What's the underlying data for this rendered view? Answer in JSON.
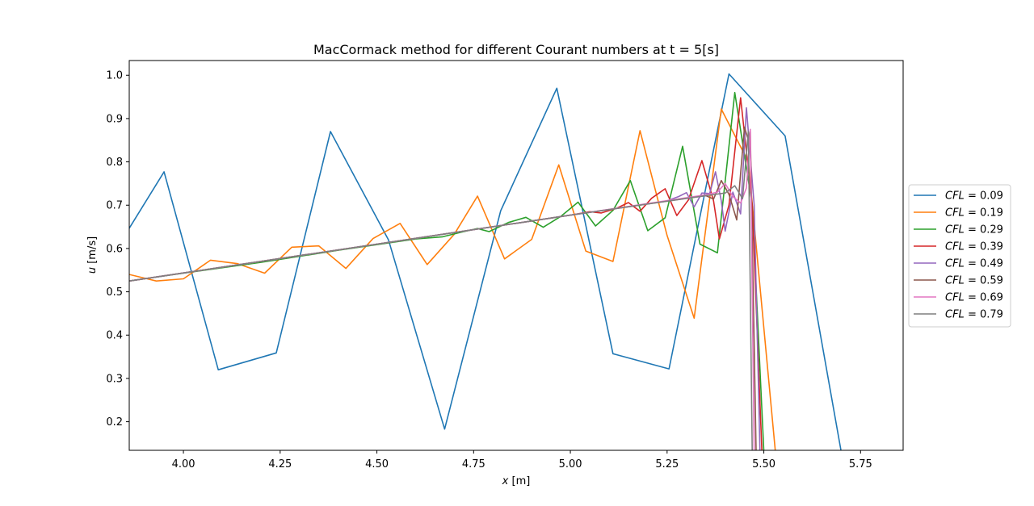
{
  "chart_data": {
    "type": "line",
    "title": "MacCormack method for different Courant numbers at t = 5[s]",
    "xlabel_var": "x",
    "xlabel_unit": " [m]",
    "ylabel_var": "u",
    "ylabel_unit": " [m/s]",
    "xlim": [
      3.86,
      5.86
    ],
    "ylim": [
      0.134,
      1.034
    ],
    "xticks": [
      4.0,
      4.25,
      4.5,
      4.75,
      5.0,
      5.25,
      5.5,
      5.75
    ],
    "xtick_labels": [
      "4.00",
      "4.25",
      "4.50",
      "4.75",
      "5.00",
      "5.25",
      "5.50",
      "5.75"
    ],
    "yticks": [
      0.2,
      0.3,
      0.4,
      0.5,
      0.6,
      0.7,
      0.8,
      0.9,
      1.0
    ],
    "ytick_labels": [
      "0.2",
      "0.3",
      "0.4",
      "0.5",
      "0.6",
      "0.7",
      "0.8",
      "0.9",
      "1.0"
    ],
    "grid": false,
    "legend_position": "right-outside",
    "legend_label_var": "CFL",
    "series": [
      {
        "name": "0.09",
        "color": "#1f77b4",
        "x": [
          3.8,
          3.95,
          4.09,
          4.24,
          4.38,
          4.53,
          4.675,
          4.82,
          4.965,
          5.11,
          5.255,
          5.41,
          5.555,
          5.7
        ],
        "y": [
          0.56,
          0.777,
          0.32,
          0.359,
          0.87,
          0.62,
          0.183,
          0.687,
          0.97,
          0.357,
          0.322,
          1.003,
          0.86,
          0.13
        ]
      },
      {
        "name": "0.19",
        "color": "#ff7f0e",
        "x": [
          3.86,
          3.93,
          4.0,
          4.07,
          4.14,
          4.21,
          4.28,
          4.35,
          4.42,
          4.49,
          4.56,
          4.63,
          4.7,
          4.76,
          4.83,
          4.9,
          4.97,
          5.04,
          5.11,
          5.18,
          5.25,
          5.32,
          5.39,
          5.46,
          5.53
        ],
        "y": [
          0.54,
          0.525,
          0.53,
          0.573,
          0.565,
          0.543,
          0.603,
          0.606,
          0.554,
          0.623,
          0.658,
          0.563,
          0.633,
          0.721,
          0.576,
          0.621,
          0.793,
          0.594,
          0.57,
          0.872,
          0.63,
          0.439,
          0.922,
          0.8,
          0.13
        ]
      },
      {
        "name": "0.29",
        "color": "#2ca02c",
        "x": [
          3.86,
          4.0,
          4.2,
          4.4,
          4.6,
          4.67,
          4.72,
          4.76,
          4.79,
          4.84,
          4.885,
          4.93,
          4.975,
          5.02,
          5.065,
          5.11,
          5.155,
          5.2,
          5.245,
          5.29,
          5.335,
          5.38,
          5.425,
          5.47,
          5.5
        ],
        "y": [
          0.525,
          0.543,
          0.568,
          0.596,
          0.622,
          0.627,
          0.638,
          0.646,
          0.639,
          0.66,
          0.672,
          0.649,
          0.674,
          0.707,
          0.652,
          0.688,
          0.757,
          0.641,
          0.671,
          0.836,
          0.61,
          0.59,
          0.96,
          0.7,
          0.13
        ]
      },
      {
        "name": "0.39",
        "color": "#d62728",
        "x": [
          3.86,
          4.5,
          5.0,
          5.05,
          5.08,
          5.12,
          5.15,
          5.18,
          5.21,
          5.245,
          5.275,
          5.305,
          5.34,
          5.37,
          5.385,
          5.41,
          5.44,
          5.47,
          5.495
        ],
        "y": [
          0.525,
          0.61,
          0.677,
          0.685,
          0.682,
          0.693,
          0.706,
          0.686,
          0.716,
          0.738,
          0.676,
          0.712,
          0.803,
          0.71,
          0.622,
          0.7,
          0.948,
          0.7,
          0.13
        ]
      },
      {
        "name": "0.49",
        "color": "#9467bd",
        "x": [
          3.86,
          4.5,
          5.0,
          5.2,
          5.25,
          5.28,
          5.3,
          5.32,
          5.34,
          5.36,
          5.375,
          5.39,
          5.4,
          5.42,
          5.44,
          5.455,
          5.475,
          5.49
        ],
        "y": [
          0.525,
          0.61,
          0.677,
          0.703,
          0.71,
          0.72,
          0.729,
          0.696,
          0.728,
          0.727,
          0.777,
          0.71,
          0.64,
          0.73,
          0.68,
          0.925,
          0.7,
          0.13
        ]
      },
      {
        "name": "0.59",
        "color": "#8c564b",
        "x": [
          3.86,
          4.5,
          5.0,
          5.3,
          5.35,
          5.37,
          5.39,
          5.41,
          5.43,
          5.45,
          5.46,
          5.465,
          5.48
        ],
        "y": [
          0.525,
          0.61,
          0.677,
          0.716,
          0.722,
          0.714,
          0.757,
          0.725,
          0.666,
          0.88,
          0.85,
          0.87,
          0.13
        ]
      },
      {
        "name": "0.69",
        "color": "#e377c2",
        "x": [
          3.86,
          4.5,
          5.0,
          5.35,
          5.38,
          5.4,
          5.42,
          5.44,
          5.455,
          5.465,
          5.475
        ],
        "y": [
          0.525,
          0.61,
          0.677,
          0.724,
          0.73,
          0.75,
          0.72,
          0.705,
          0.74,
          0.875,
          0.13
        ]
      },
      {
        "name": "0.79",
        "color": "#7f7f7f",
        "x": [
          3.86,
          4.5,
          5.0,
          5.35,
          5.4,
          5.425,
          5.445,
          5.46,
          5.47
        ],
        "y": [
          0.525,
          0.61,
          0.677,
          0.722,
          0.728,
          0.745,
          0.715,
          0.87,
          0.13
        ]
      }
    ]
  }
}
